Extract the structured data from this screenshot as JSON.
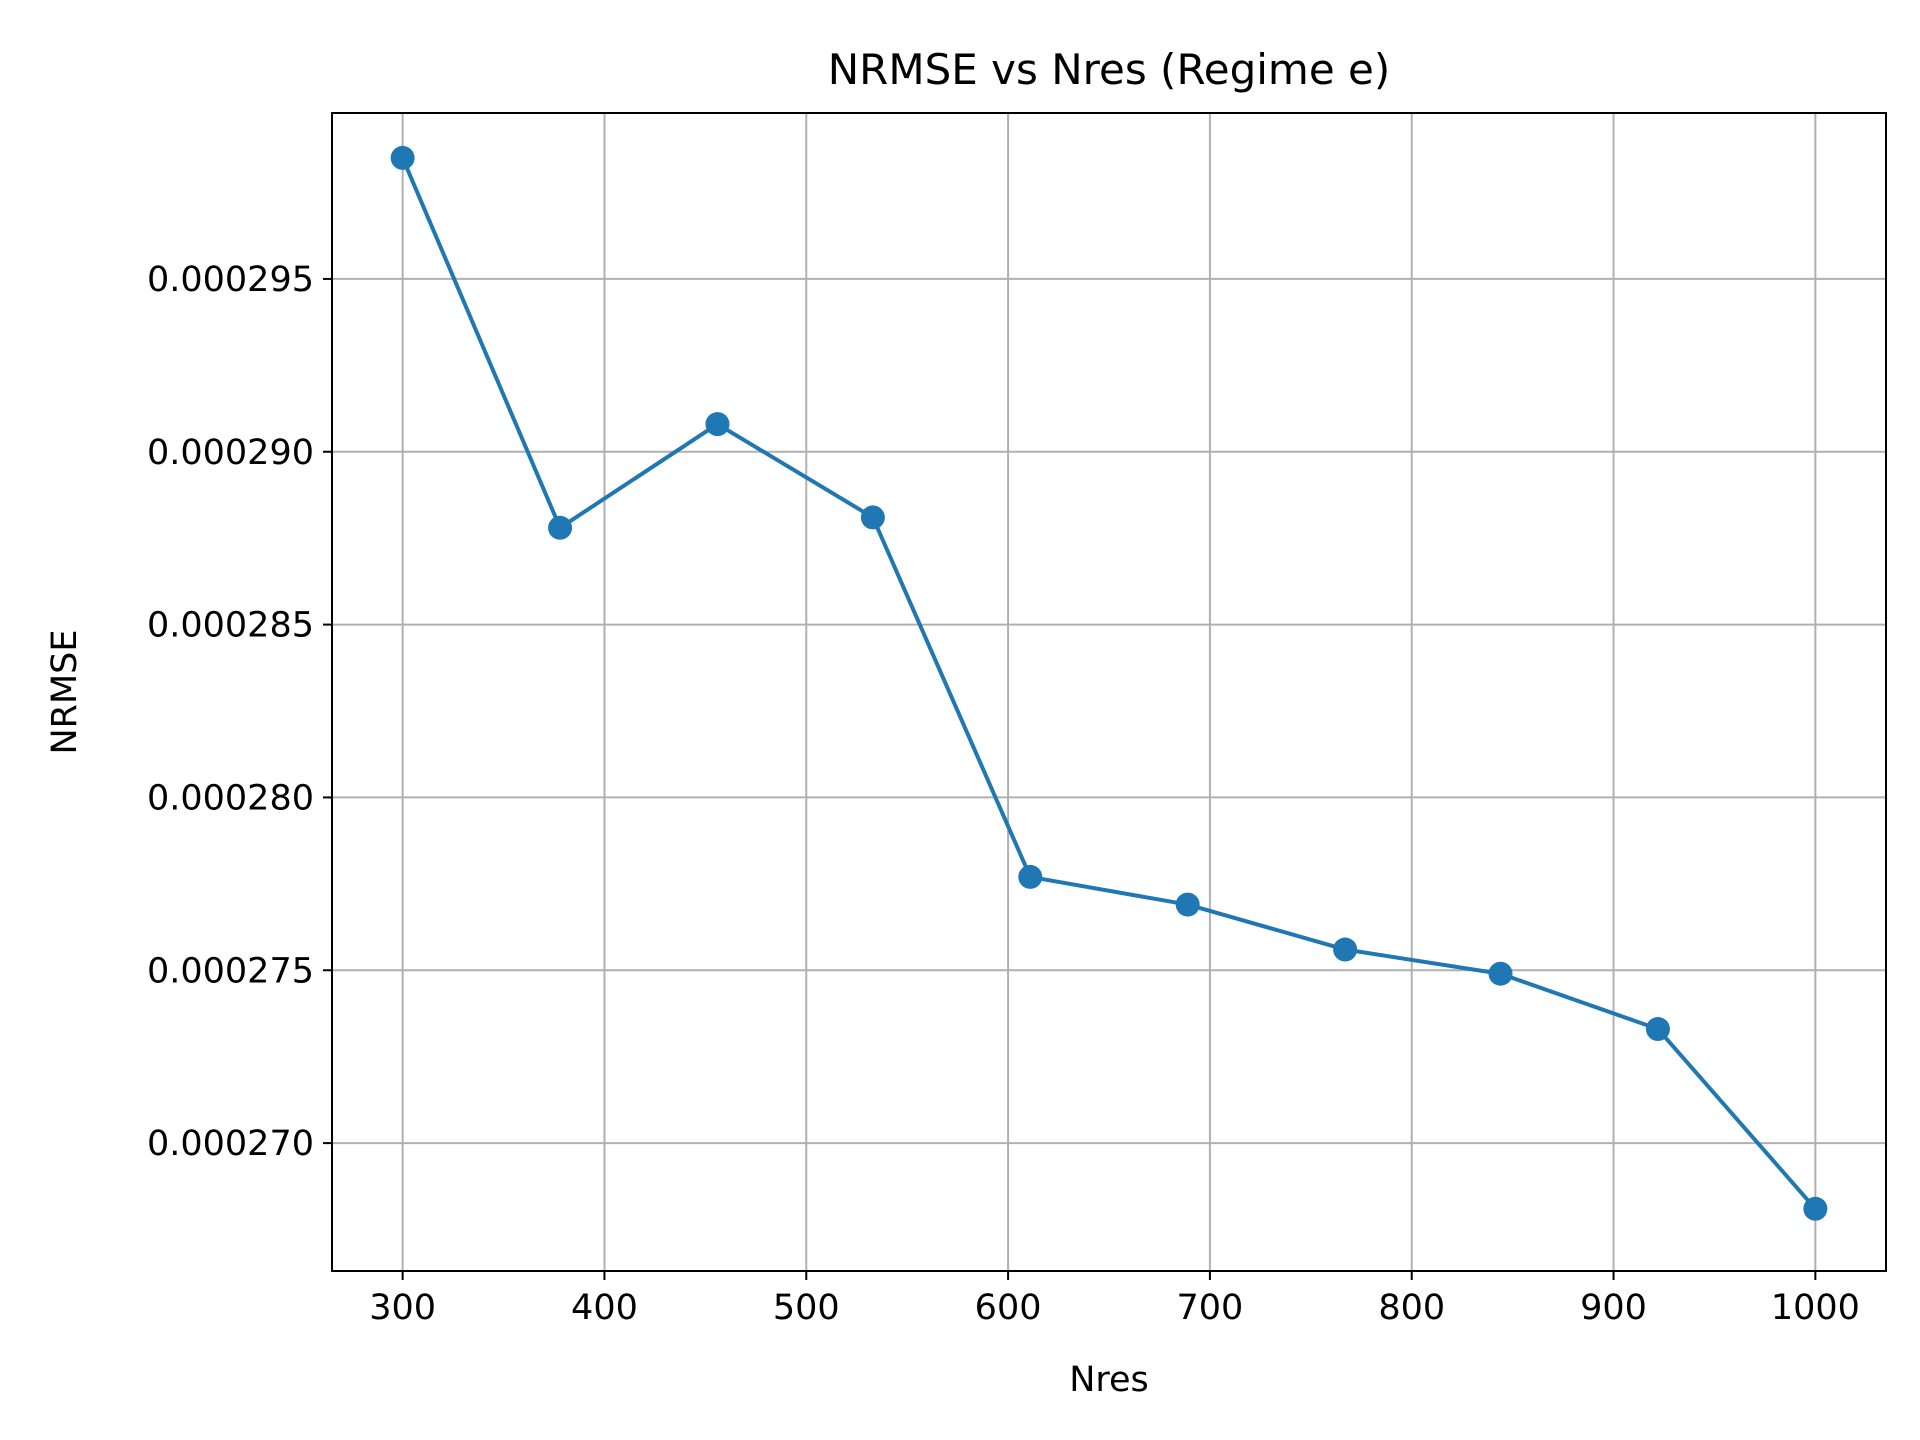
{
  "chart_data": {
    "type": "line",
    "title": "NRMSE vs Nres (Regime e)",
    "xlabel": "Nres",
    "ylabel": "NRMSE",
    "x": [
      300,
      378,
      456,
      533,
      611,
      689,
      767,
      844,
      922,
      1000
    ],
    "series": [
      {
        "values": [
          0.0002985,
          0.0002878,
          0.0002908,
          0.0002881,
          0.0002777,
          0.0002769,
          0.0002756,
          0.0002749,
          0.0002733,
          0.0002681
        ],
        "color": "#1f77b4",
        "marker": "circle"
      }
    ],
    "xlim": [
      265,
      1035
    ],
    "ylim": [
      0.0002663,
      0.0002998
    ],
    "xticks": [
      300,
      400,
      500,
      600,
      700,
      800,
      900,
      1000
    ],
    "xtick_labels": [
      "300",
      "400",
      "500",
      "600",
      "700",
      "800",
      "900",
      "1000"
    ],
    "yticks": [
      0.00027,
      0.000275,
      0.00028,
      0.000285,
      0.00029,
      0.000295
    ],
    "ytick_labels": [
      "0.000270",
      "0.000275",
      "0.000280",
      "0.000285",
      "0.000290",
      "0.000295"
    ],
    "grid": true,
    "legend": "none"
  }
}
